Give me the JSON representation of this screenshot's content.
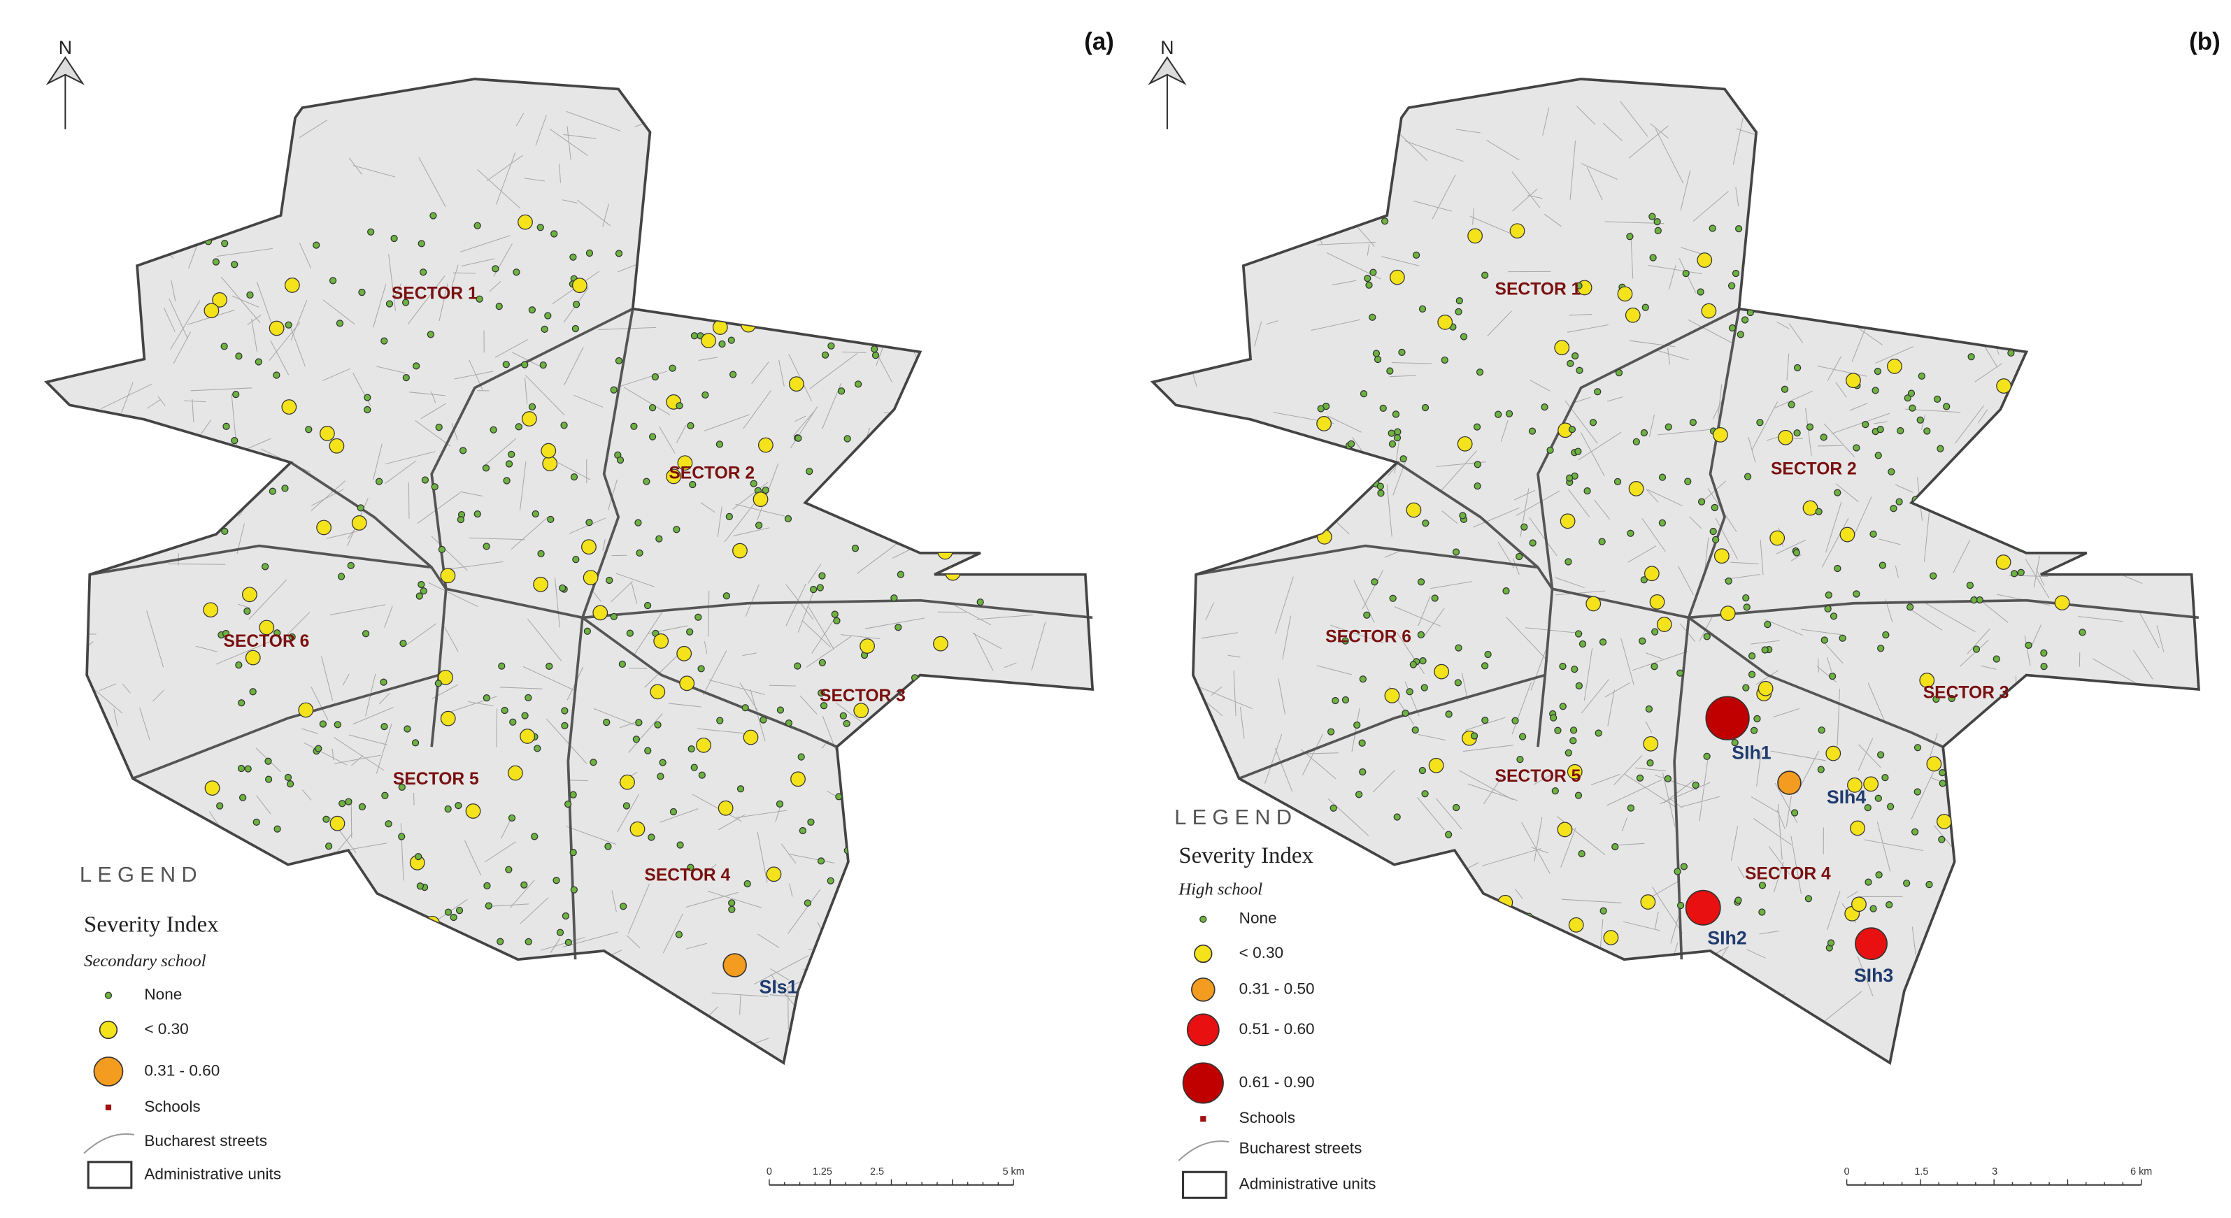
{
  "panels": [
    {
      "label": "(a)",
      "north": "N",
      "sectors": [
        "SECTOR 1",
        "SECTOR 2",
        "SECTOR 3",
        "SECTOR 4",
        "SECTOR 5",
        "SECTOR 6"
      ],
      "hotspots": [
        "SIs1"
      ],
      "legend": {
        "title": "LEGEND",
        "heading": "Severity Index",
        "subheading": "Secondary school",
        "items": [
          "None",
          "< 0.30",
          "0.31 - 0.60",
          "Schools",
          "Bucharest streets",
          "Administrative units"
        ]
      },
      "scale": [
        "0",
        "1.25",
        "2.5",
        "5 km"
      ]
    },
    {
      "label": "(b)",
      "north": "N",
      "sectors": [
        "SECTOR 1",
        "SECTOR 2",
        "SECTOR 3",
        "SECTOR 4",
        "SECTOR 5",
        "SECTOR 6"
      ],
      "hotspots": [
        "SIh1",
        "SIh2",
        "SIh3",
        "SIh4"
      ],
      "legend": {
        "title": "LEGEND",
        "heading": "Severity Index",
        "subheading": "High school",
        "items": [
          "None",
          "< 0.30",
          "0.31 - 0.50",
          "0.51 - 0.60",
          "0.61 - 0.90",
          "Schools",
          "Bucharest streets",
          "Administrative units"
        ]
      },
      "scale": [
        "0",
        "1.5",
        "3",
        "6 km"
      ]
    }
  ]
}
